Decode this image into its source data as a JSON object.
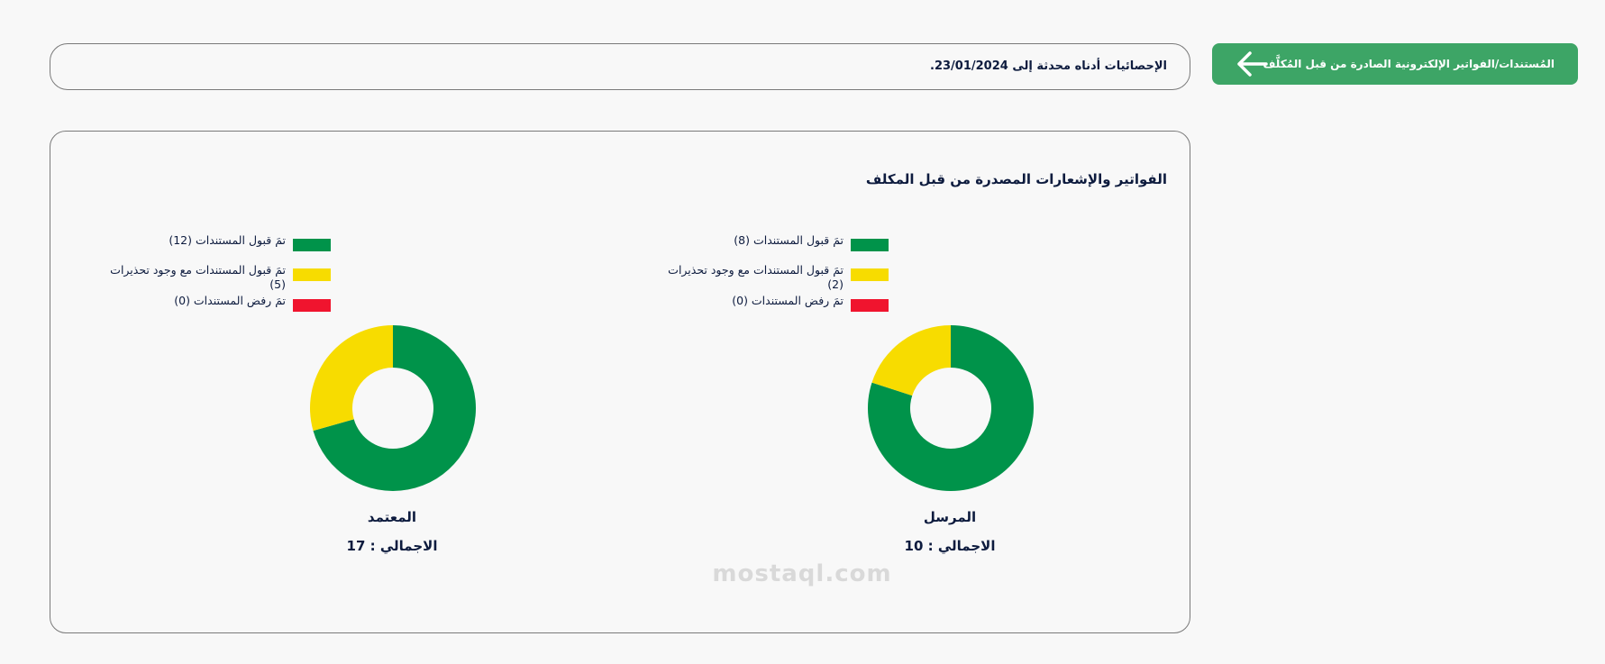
{
  "header": {
    "breadcrumb": "المُستندات/الفواتير الإلكترونية الصادرة من قبل المُكلَّف",
    "info": "الإحصائيات أدناه محدثة إلى 23/01/2024."
  },
  "panel": {
    "title": "الفواتير والإشعارات المصدرة من قبل المكلف"
  },
  "colors": {
    "accepted": "#00934a",
    "warnings": "#f7dc00",
    "rejected": "#f0142e",
    "button": "#3da566"
  },
  "chart_data": [
    {
      "type": "pie",
      "name": "المرسل",
      "total_label": "الاجمالي : 10",
      "categories": [
        "تمَ قبول المستندات (8)",
        "تمَ قبول المستندات مع وجود تحذيرات (2)",
        "تمَ رفض المستندات (0)"
      ],
      "values": [
        8,
        2,
        0
      ],
      "colors": [
        "#00934a",
        "#f7dc00",
        "#f0142e"
      ],
      "legend": "top"
    },
    {
      "type": "pie",
      "name": "المعتمد",
      "total_label": "الاجمالي : 17",
      "categories": [
        "تمَ قبول المستندات (12)",
        "تمَ قبول المستندات مع وجود تحذيرات (5)",
        "تمَ رفض المستندات (0)"
      ],
      "values": [
        12,
        5,
        0
      ],
      "colors": [
        "#00934a",
        "#f7dc00",
        "#f0142e"
      ],
      "legend": "top"
    }
  ],
  "watermark": "mostaql.com"
}
